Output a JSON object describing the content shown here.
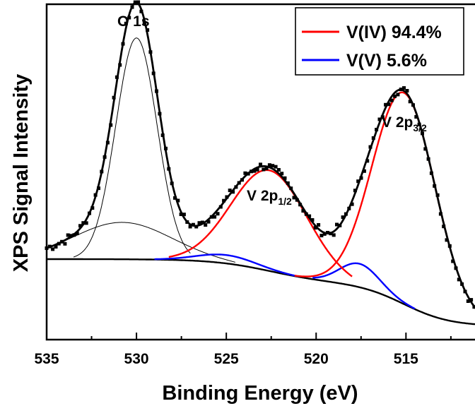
{
  "chart_data": {
    "type": "line",
    "title": "",
    "xlabel": "Binding Energy (eV)",
    "ylabel": "XPS Signal Intensity",
    "xlim": [
      535,
      511
    ],
    "x_reversed": true,
    "ylim": [
      0,
      100
    ],
    "y_ticks_shown": false,
    "x_ticks": [
      535,
      530,
      525,
      520,
      515
    ],
    "x_tick_labels": [
      "535",
      "530",
      "525",
      "520",
      "515"
    ],
    "grid": false,
    "legend": {
      "placement": "top-right",
      "entries": [
        {
          "label": "V(IV) 94.4%",
          "color": "#ff0000"
        },
        {
          "label": "V(V) 5.6%",
          "color": "#0000ff"
        }
      ]
    },
    "annotations": [
      {
        "text": "O 1s",
        "x": 530.2,
        "y": 97
      },
      {
        "text": "V 2p",
        "sub": "1/2",
        "x": 522.8,
        "y": 53
      },
      {
        "text": "V 2p",
        "sub": "3/2",
        "x": 515.3,
        "y": 80
      }
    ],
    "background": {
      "kind": "shirley",
      "left_level": 24,
      "mid_level": 17,
      "right_level": 4
    },
    "peaks": [
      {
        "name": "O1s-main",
        "center": 530.0,
        "height": 66,
        "width": 1.15,
        "color": "#000000"
      },
      {
        "name": "O1s-broad",
        "center": 530.8,
        "height": 11,
        "width": 2.7,
        "color": "#000000"
      },
      {
        "name": "V(IV) 2p1/2",
        "center": 522.6,
        "height": 30,
        "width": 2.1,
        "color": "#ff0000"
      },
      {
        "name": "V(V) 2p1/2",
        "center": 525.0,
        "height": 2.5,
        "width": 1.6,
        "color": "#0000ff"
      },
      {
        "name": "V(IV) 2p3/2",
        "center": 515.1,
        "height": 63,
        "width": 1.75,
        "color": "#ff0000"
      },
      {
        "name": "V(V) 2p3/2",
        "center": 517.6,
        "height": 7,
        "width": 1.1,
        "color": "#0000ff"
      }
    ],
    "series": [
      {
        "name": "V(IV) 94.4%",
        "color": "#ff0000"
      },
      {
        "name": "V(V) 5.6%",
        "color": "#0000ff"
      }
    ]
  }
}
